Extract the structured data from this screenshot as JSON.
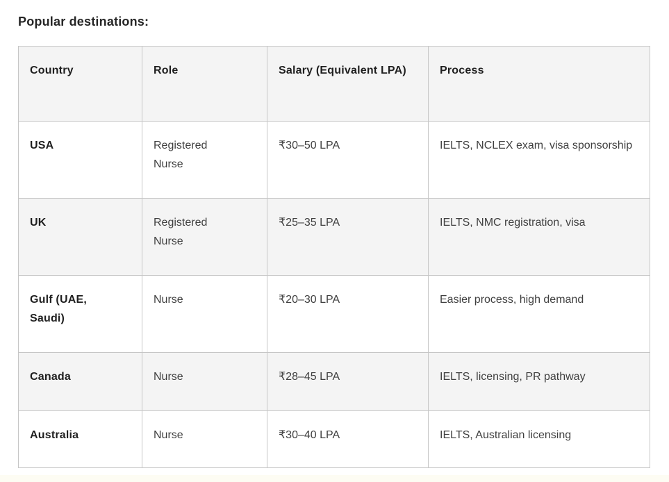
{
  "page": {
    "title": "Popular destinations:"
  },
  "table": {
    "columns": {
      "country": "Country",
      "role": "Role",
      "salary": "Salary (Equivalent LPA)",
      "process": "Process"
    },
    "rows": [
      {
        "country": "USA",
        "role": "Registered Nurse",
        "salary": "₹30–50 LPA",
        "process": "IELTS, NCLEX exam, visa sponsorship"
      },
      {
        "country": "UK",
        "role": "Registered Nurse",
        "salary": "₹25–35 LPA",
        "process": "IELTS, NMC registration, visa"
      },
      {
        "country": "Gulf (UAE, Saudi)",
        "role": "Nurse",
        "salary": "₹20–30 LPA",
        "process": "Easier process, high demand"
      },
      {
        "country": "Canada",
        "role": "Nurse",
        "salary": "₹28–45 LPA",
        "process": "IELTS, licensing, PR pathway"
      },
      {
        "country": "Australia",
        "role": "Nurse",
        "salary": "₹30–40 LPA",
        "process": "IELTS, Australian licensing"
      }
    ],
    "colors": {
      "header_bg": "#f4f4f4",
      "stripe_bg": "#f4f4f4",
      "row_bg": "#ffffff",
      "border": "#c6c6c6",
      "heading_text": "#1f1f1f",
      "body_text": "#3f3f3f"
    }
  }
}
